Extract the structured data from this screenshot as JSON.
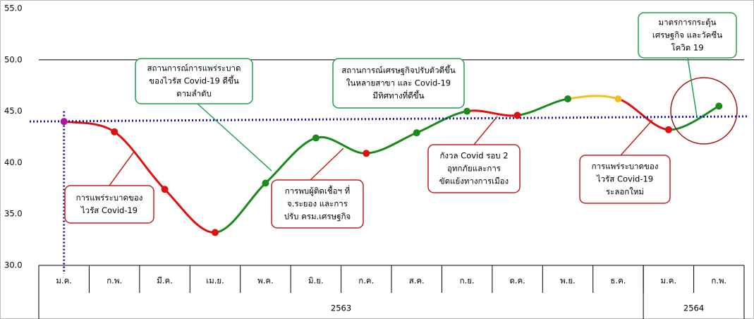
{
  "chart_data": {
    "type": "line",
    "categories": [
      "ม.ค.",
      "ก.พ.",
      "มี.ค.",
      "เม.ย.",
      "พ.ค.",
      "มิ.ย.",
      "ก.ค.",
      "ส.ค.",
      "ก.ย.",
      "ต.ค.",
      "พ.ย.",
      "ธ.ค.",
      "ม.ค.",
      "ก.พ."
    ],
    "values": [
      44.0,
      43.0,
      37.4,
      33.2,
      38.0,
      42.4,
      40.9,
      42.9,
      45.0,
      44.6,
      46.2,
      46.2,
      43.2,
      45.5
    ],
    "point_colors": [
      "#b0169a",
      "#e01010",
      "#e01010",
      "#e01010",
      "#1a8a1a",
      "#1a8a1a",
      "#e01010",
      "#1a8a1a",
      "#1a8a1a",
      "#e01010",
      "#1a8a1a",
      "#f0c020",
      "#e01010",
      "#1a8a1a"
    ],
    "segment_colors": [
      "#e01010",
      "#e01010",
      "#e01010",
      "#1a8a1a",
      "#1a8a1a",
      "#1a8a1a",
      "#1a8a1a",
      "#1a8a1a",
      "#e01010",
      "#1a8a1a",
      "#f0c020",
      "#e01010",
      "#1a8a1a"
    ],
    "ylim": [
      30,
      55
    ],
    "yticks": [
      {
        "value": 30,
        "label": "30.0"
      },
      {
        "value": 35,
        "label": "35.0"
      },
      {
        "value": 40,
        "label": "40.0"
      },
      {
        "value": 45,
        "label": "45.0"
      },
      {
        "value": 50,
        "label": "50.0"
      },
      {
        "value": 55,
        "label": "55.0"
      }
    ],
    "hline": 50,
    "reference_line": {
      "values": [
        44.0,
        44.5
      ],
      "color": "#1a1aa0"
    },
    "year_groups": [
      {
        "label": "2563",
        "span": 12
      },
      {
        "label": "2564",
        "span": 2
      }
    ],
    "annotations": [
      {
        "lines": [
          "การแพร่ระบาดของ",
          "ไวรัส Covid-19"
        ],
        "color": "#c02020"
      },
      {
        "lines": [
          "สถานการณ์การแพร่ระบาด",
          "ของไวรัส Covid-19 ดีขึ้น",
          "ตามลำดับ"
        ],
        "color": "#20a050"
      },
      {
        "lines": [
          "การพบผู้ติดเชื้อฯ ที่",
          "จ.ระยอง และการ",
          "ปรับ ครม.เศรษฐกิจ"
        ],
        "color": "#c02020"
      },
      {
        "lines": [
          "สถานการณ์เศรษฐกิจปรับตัวดีขึ้น",
          "ในหลายสาขา และ Covid-19",
          "มีทิศทางที่ดีขึ้น"
        ],
        "color": "#20a050"
      },
      {
        "lines": [
          "กังวล Covid รอบ 2",
          "อุทกภัยและการ",
          "ขัดแย้งทางการเมือง"
        ],
        "color": "#c02020"
      },
      {
        "lines": [
          "การแพร่ระบาดของ",
          "ไวรัส Covid-19",
          "ระลอกใหม่"
        ],
        "color": "#c02020"
      },
      {
        "lines": [
          "มาตรการกระตุ้น",
          "เศรษฐกิจ และวัคซีน",
          "โควิด 19"
        ],
        "color": "#20a050"
      }
    ]
  }
}
